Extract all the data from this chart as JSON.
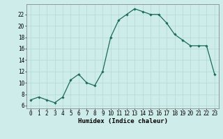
{
  "x": [
    0,
    1,
    2,
    3,
    4,
    5,
    6,
    7,
    8,
    9,
    10,
    11,
    12,
    13,
    14,
    15,
    16,
    17,
    18,
    19,
    20,
    21,
    22,
    23
  ],
  "y": [
    7.0,
    7.5,
    7.0,
    6.5,
    7.5,
    10.5,
    11.5,
    10.0,
    9.5,
    12.0,
    18.0,
    21.0,
    22.0,
    23.0,
    22.5,
    22.0,
    22.0,
    20.5,
    18.5,
    17.5,
    16.5,
    16.5,
    16.5,
    11.5
  ],
  "line_color": "#1a6b5a",
  "marker": "D",
  "marker_size": 1.8,
  "line_width": 0.9,
  "bg_color": "#ceecea",
  "grid_color": "#b2d8d4",
  "axis_color": "#555555",
  "xlabel": "Humidex (Indice chaleur)",
  "xlabel_fontsize": 6.5,
  "xlabel_fontweight": "bold",
  "ylabel_ticks": [
    6,
    8,
    10,
    12,
    14,
    16,
    18,
    20,
    22
  ],
  "xlim": [
    -0.5,
    23.5
  ],
  "ylim": [
    5.5,
    23.8
  ],
  "tick_fontsize": 5.5
}
